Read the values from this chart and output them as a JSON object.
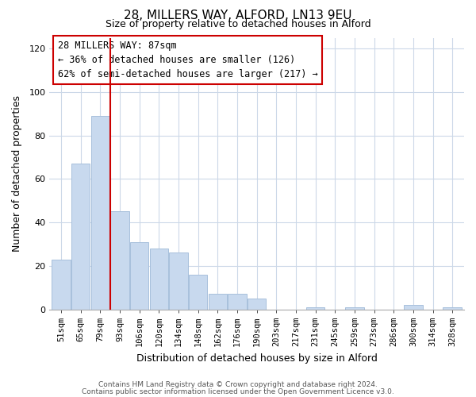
{
  "title": "28, MILLERS WAY, ALFORD, LN13 9EU",
  "subtitle": "Size of property relative to detached houses in Alford",
  "xlabel": "Distribution of detached houses by size in Alford",
  "ylabel": "Number of detached properties",
  "bar_labels": [
    "51sqm",
    "65sqm",
    "79sqm",
    "93sqm",
    "106sqm",
    "120sqm",
    "134sqm",
    "148sqm",
    "162sqm",
    "176sqm",
    "190sqm",
    "203sqm",
    "217sqm",
    "231sqm",
    "245sqm",
    "259sqm",
    "273sqm",
    "286sqm",
    "300sqm",
    "314sqm",
    "328sqm"
  ],
  "bar_values": [
    23,
    67,
    89,
    45,
    31,
    28,
    26,
    16,
    7,
    7,
    5,
    0,
    0,
    1,
    0,
    1,
    0,
    0,
    2,
    0,
    1
  ],
  "bar_color": "#c8d9ee",
  "bar_edge_color": "#a8c0dc",
  "vline_x_index": 2.5,
  "vline_color": "#cc0000",
  "annotation_title": "28 MILLERS WAY: 87sqm",
  "annotation_line1": "← 36% of detached houses are smaller (126)",
  "annotation_line2": "62% of semi-detached houses are larger (217) →",
  "annotation_box_color": "#ffffff",
  "annotation_box_edge": "#cc0000",
  "ylim": [
    0,
    125
  ],
  "yticks": [
    0,
    20,
    40,
    60,
    80,
    100,
    120
  ],
  "footer1": "Contains HM Land Registry data © Crown copyright and database right 2024.",
  "footer2": "Contains public sector information licensed under the Open Government Licence v3.0.",
  "background_color": "#ffffff",
  "grid_color": "#ccd8e8"
}
